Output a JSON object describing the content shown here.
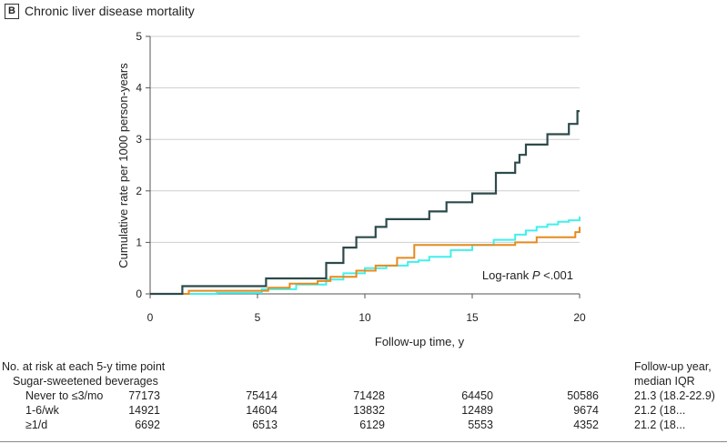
{
  "panel": {
    "label": "B",
    "title": "Chronic liver disease mortality"
  },
  "chart_data": {
    "type": "line",
    "subtype": "step",
    "title": "Chronic liver disease mortality",
    "xlabel": "Follow-up time, y",
    "ylabel": "Cumulative rate per 1000 person-years",
    "xlim": [
      0,
      20
    ],
    "ylim": [
      0,
      5
    ],
    "xticks": [
      "0",
      "5",
      "10",
      "15",
      "20"
    ],
    "yticks": [
      "0",
      "1",
      "2",
      "3",
      "4",
      "5"
    ],
    "grid": "horizontal",
    "annotation": {
      "prefix": "Log-rank ",
      "italic": "P",
      "suffix": " <.001"
    },
    "series": [
      {
        "name": "Never to ≤3/mo",
        "color": "#40f0ec",
        "x": [
          0,
          1.5,
          3.1,
          5.2,
          6.8,
          8.2,
          9.0,
          10.0,
          11.0,
          12.0,
          12.5,
          13.0,
          14.0,
          15.0,
          16.0,
          17.0,
          17.5,
          18.0,
          18.5,
          19.0,
          19.5,
          20.0
        ],
        "y": [
          0,
          0,
          0.02,
          0.09,
          0.18,
          0.28,
          0.4,
          0.5,
          0.55,
          0.62,
          0.65,
          0.72,
          0.85,
          0.95,
          1.05,
          1.15,
          1.23,
          1.3,
          1.35,
          1.4,
          1.43,
          1.5
        ]
      },
      {
        "name": "1-6/wk",
        "color": "#e58a1f",
        "x": [
          0,
          1.8,
          5.5,
          6.5,
          7.8,
          8.4,
          9.6,
          10.5,
          11.5,
          12.3,
          13.5,
          15.0,
          16.5,
          17.0,
          18.0,
          19.8,
          20.0
        ],
        "y": [
          0,
          0.06,
          0.12,
          0.2,
          0.25,
          0.33,
          0.45,
          0.55,
          0.7,
          0.95,
          0.95,
          0.95,
          0.95,
          1.0,
          1.1,
          1.2,
          1.3
        ]
      },
      {
        "name": "≥1/d",
        "color": "#2d4a4a",
        "x": [
          0,
          1.5,
          5.4,
          8.2,
          9.0,
          9.6,
          10.5,
          11.0,
          13.0,
          13.8,
          15.0,
          16.1,
          16.4,
          17.0,
          17.2,
          17.5,
          18.5,
          19.5,
          19.9,
          20.0
        ],
        "y": [
          0,
          0.15,
          0.3,
          0.6,
          0.9,
          1.1,
          1.3,
          1.45,
          1.6,
          1.78,
          1.95,
          2.35,
          2.35,
          2.55,
          2.7,
          2.9,
          3.1,
          3.3,
          3.55,
          3.55
        ]
      }
    ]
  },
  "risk_table": {
    "heading": "No. at risk at each 5-y time point",
    "group_label": "Sugar-sweetened beverages",
    "followup_header_line1": "Follow-up year,",
    "followup_header_line2": "median IQR",
    "rows": [
      {
        "label": "Never to ≤3/mo",
        "values": [
          "77173",
          "75414",
          "71428",
          "64450",
          "50586"
        ],
        "followup": "21.3 (18.2-22.9)"
      },
      {
        "label": "1-6/wk",
        "values": [
          "14921",
          "14604",
          "13832",
          "12489",
          "9674"
        ],
        "followup": "21.2 (18..."
      },
      {
        "label": "≥1/d",
        "values": [
          "6692",
          "6513",
          "6129",
          "5553",
          "4352"
        ],
        "followup": "21.2 (18..."
      }
    ]
  }
}
